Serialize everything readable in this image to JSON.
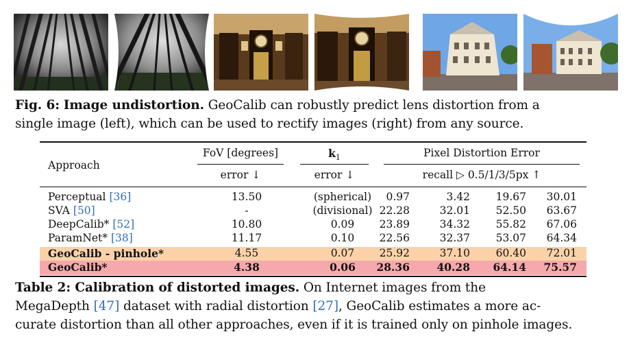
{
  "figure": {
    "label": "Fig. 6:",
    "title": "Image undistortion.",
    "caption_lines": [
      "GeoCalib can robustly predict lens distortion from a",
      "single image (left), which can be used to rectify images (right) from any source."
    ],
    "images": [
      {
        "name": "forest-distorted",
        "scene": "forest",
        "version": "distorted"
      },
      {
        "name": "forest-rectified",
        "scene": "forest",
        "version": "rectified"
      },
      {
        "name": "clock-room-distorted",
        "scene": "clock-room",
        "version": "distorted"
      },
      {
        "name": "clock-room-rectified",
        "scene": "clock-room",
        "version": "rectified"
      },
      {
        "name": "building-distorted",
        "scene": "building",
        "version": "distorted"
      },
      {
        "name": "building-rectified",
        "scene": "building",
        "version": "rectified"
      }
    ]
  },
  "table": {
    "header": {
      "approach": "Approach",
      "fov_group": "FoV [degrees]",
      "k1_group": "k",
      "k1_sub": "1",
      "pixel_group": "Pixel Distortion Error",
      "fov_metric": "error ↓",
      "k1_metric": "error ↓",
      "pixel_metric": "recall ▷ 0.5/1/3/5px ↑"
    },
    "rows": [
      {
        "approach": "Perceptual ",
        "cite": "[36]",
        "fov": "13.50",
        "k1": "(spherical)",
        "r05": "0.97",
        "r1": "3.42",
        "r3": "19.67",
        "r5": "30.01",
        "highlight": "none",
        "bold": false
      },
      {
        "approach": "SVA ",
        "cite": "[50]",
        "fov": "-",
        "k1": "(divisional)",
        "r05": "22.28",
        "r1": "32.01",
        "r3": "52.50",
        "r5": "63.67",
        "highlight": "none",
        "bold": false
      },
      {
        "approach": "DeepCalib* ",
        "cite": "[52]",
        "fov": "10.80",
        "k1": "0.09",
        "r05": "23.89",
        "r1": "34.32",
        "r3": "55.82",
        "r5": "67.06",
        "highlight": "none",
        "bold": false
      },
      {
        "approach": "ParamNet* ",
        "cite": "[38]",
        "fov": "11.17",
        "k1": "0.10",
        "r05": "22.56",
        "r1": "32.37",
        "r3": "53.07",
        "r5": "64.34",
        "highlight": "none",
        "bold": false
      },
      {
        "approach": "GeoCalib - pinhole*",
        "cite": "",
        "fov": "4.55",
        "k1": "0.07",
        "r05": "25.92",
        "r1": "37.10",
        "r3": "60.40",
        "r5": "72.01",
        "highlight": "orange",
        "bold": false
      },
      {
        "approach": "GeoCalib*",
        "cite": "",
        "fov": "4.38",
        "k1": "0.06",
        "r05": "28.36",
        "r1": "40.28",
        "r3": "64.14",
        "r5": "75.57",
        "highlight": "red",
        "bold": true
      }
    ]
  },
  "table_caption": {
    "label": "Table 2: Calibration of distorted images.",
    "line1_rest": " On Internet images from the",
    "line2_a": "MegaDepth ",
    "line2_cite1": "[47]",
    "line2_b": " dataset with radial distortion ",
    "line2_cite2": "[27]",
    "line2_c": ", GeoCalib estimates a more ac-",
    "line3": "curate distortion than all other approaches, even if it is trained only on pinhole images."
  },
  "colors": {
    "highlight_orange": "#fbd2a8",
    "highlight_red": "#f6a9ac",
    "citation_blue": "#2e6fb8"
  }
}
